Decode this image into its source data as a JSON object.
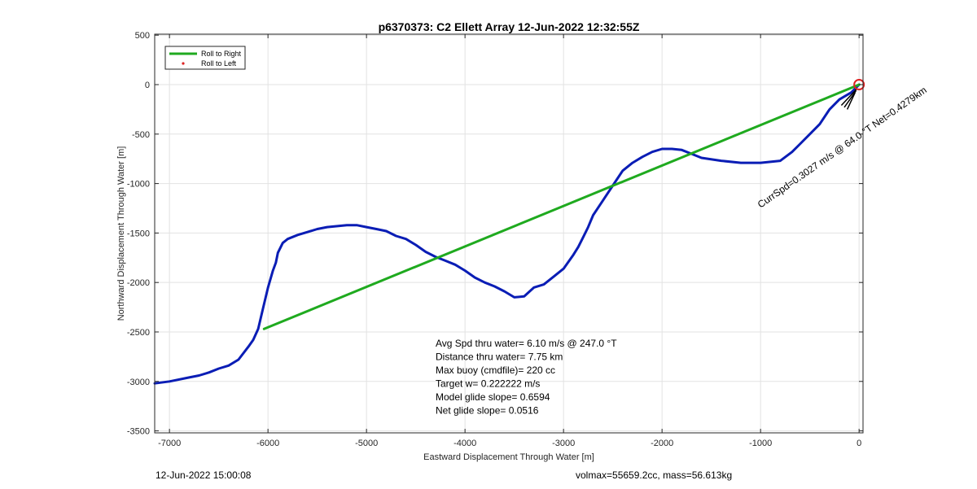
{
  "chart_data": {
    "type": "line",
    "title": "p6370373: C2 Ellett Array 12-Jun-2022 12:32:55Z",
    "xlabel": "Eastward Displacement Through Water [m]",
    "ylabel": "Northward Displacement Through Water [m]",
    "xlim": [
      -7150,
      40
    ],
    "ylim": [
      -3520,
      510
    ],
    "xticks": [
      -7000,
      -6000,
      -5000,
      -4000,
      -3000,
      -2000,
      -1000,
      0
    ],
    "yticks": [
      500,
      0,
      -500,
      -1000,
      -1500,
      -2000,
      -2500,
      -3000,
      -3500
    ],
    "grid": true,
    "legend_position": "top-left",
    "legend": [
      {
        "label": "Roll to Right",
        "color": "#1faa1f",
        "style": "line"
      },
      {
        "label": "Roll to Left",
        "color": "#dd2222",
        "style": "marker"
      }
    ],
    "series": [
      {
        "color": "#0a1db5",
        "x": [
          0,
          -80,
          -200,
          -300,
          -400,
          -500,
          -600,
          -680,
          -800,
          -1000,
          -1200,
          -1400,
          -1600,
          -1700,
          -1800,
          -1900,
          -2000,
          -2100,
          -2200,
          -2300,
          -2400,
          -2500,
          -2600,
          -2700,
          -2750,
          -2800,
          -2850,
          -2900,
          -3000,
          -3100,
          -3200,
          -3300,
          -3400,
          -3500,
          -3600,
          -3700,
          -3800,
          -3900,
          -4000,
          -4100,
          -4200,
          -4300,
          -4400,
          -4500,
          -4600,
          -4700,
          -4800,
          -4900,
          -5000,
          -5100,
          -5200,
          -5400,
          -5500,
          -5600,
          -5700,
          -5800,
          -5850,
          -5900,
          -5920,
          -5950,
          -6000,
          -6050,
          -6100,
          -6150,
          -6200,
          -6300,
          -6400,
          -6500,
          -6600,
          -6700,
          -6800,
          -7000,
          -7150
        ],
        "y": [
          0,
          -80,
          -150,
          -250,
          -400,
          -500,
          -600,
          -680,
          -770,
          -790,
          -790,
          -770,
          -740,
          -700,
          -660,
          -650,
          -650,
          -680,
          -730,
          -790,
          -870,
          -1020,
          -1170,
          -1320,
          -1440,
          -1540,
          -1640,
          -1720,
          -1860,
          -1940,
          -2020,
          -2050,
          -2140,
          -2150,
          -2090,
          -2040,
          -2000,
          -1950,
          -1880,
          -1820,
          -1780,
          -1740,
          -1690,
          -1620,
          -1560,
          -1530,
          -1480,
          -1460,
          -1440,
          -1420,
          -1420,
          -1440,
          -1460,
          -1490,
          -1520,
          -1560,
          -1600,
          -1700,
          -1800,
          -1880,
          -2050,
          -2260,
          -2470,
          -2580,
          -2650,
          -2780,
          -2840,
          -2870,
          -2910,
          -2940,
          -2960,
          -3000,
          -3020
        ]
      },
      {
        "color": "#1faa1f",
        "x": [
          -6040,
          0
        ],
        "y": [
          -2470,
          0
        ]
      }
    ],
    "annotations": [
      {
        "type": "text",
        "x": -1000,
        "y": -1250,
        "text": "CurrSpd=0.3027 m/s @ 64.0 °T Net=0.4279km",
        "color": "#000000",
        "angle": 35
      },
      {
        "type": "circle",
        "x": 0,
        "y": 0,
        "color": "#dd2222"
      }
    ],
    "stats": [
      "Avg Spd thru water=  6.10 m/s @ 247.0 °T",
      "Distance thru water=  7.75 km",
      "Max buoy (cmdfile)= 220 cc",
      "Target w= 0.222222 m/s",
      "Model glide slope= 0.6594",
      "Net glide slope= 0.0516"
    ]
  },
  "footer": {
    "left": "12-Jun-2022 15:00:08",
    "right": "volmax=55659.2cc, mass=56.613kg"
  }
}
